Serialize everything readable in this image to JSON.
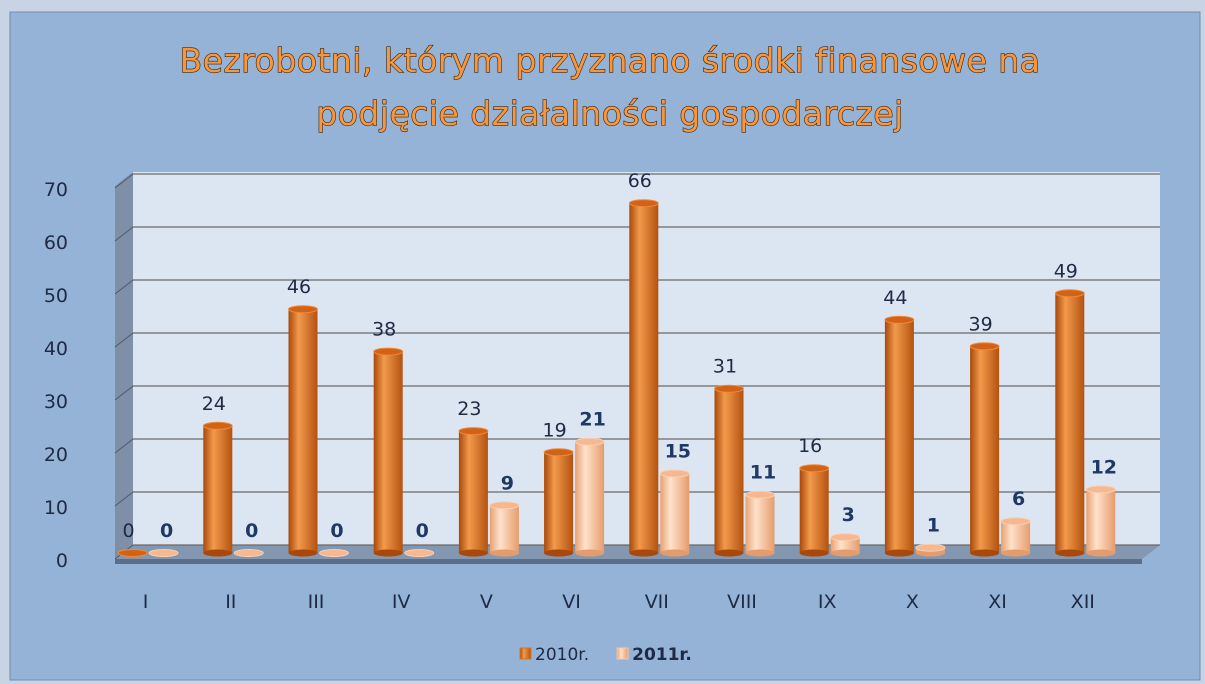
{
  "chart_data": {
    "type": "bar",
    "title": [
      "Bezrobotni, którym przyznano środki finansowe na",
      "podjęcie działalności gospodarczej"
    ],
    "categories": [
      "I",
      "II",
      "III",
      "IV",
      "V",
      "VI",
      "VII",
      "VIII",
      "IX",
      "X",
      "XI",
      "XII"
    ],
    "series": [
      {
        "name": "2010r.",
        "color": "#e2701c",
        "values": [
          0,
          24,
          46,
          38,
          23,
          19,
          66,
          31,
          16,
          44,
          39,
          49
        ]
      },
      {
        "name": "2011r.",
        "color": "#fbc6a0",
        "values": [
          0,
          0,
          0,
          0,
          9,
          21,
          15,
          11,
          3,
          1,
          6,
          12
        ]
      }
    ],
    "ylim": [
      0,
      70
    ],
    "yticks": [
      0,
      10,
      20,
      30,
      40,
      50,
      60,
      70
    ],
    "grid": true,
    "legend": "bottom"
  }
}
